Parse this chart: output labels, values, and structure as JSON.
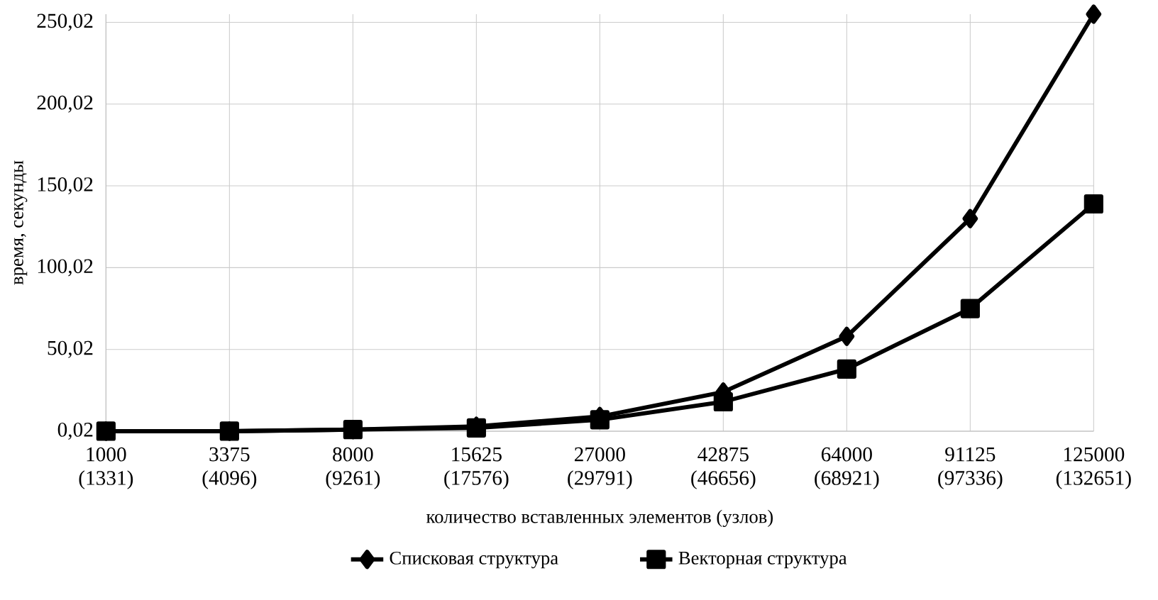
{
  "chart_data": {
    "type": "line",
    "xlabel": "количество вставленных элементов (узлов)",
    "ylabel": "время, секунды",
    "categories": [
      "1000\n(1331)",
      "3375\n(4096)",
      "8000\n(9261)",
      "15625\n(17576)",
      "27000\n(29791)",
      "42875\n(46656)",
      "64000\n(68921)",
      "91125\n(97336)",
      "125000\n(132651)"
    ],
    "series": [
      {
        "name": "Списковая структура",
        "color": "#000000",
        "marker": "diamond",
        "values": [
          0.02,
          0.02,
          1,
          3,
          9,
          24,
          58,
          130,
          255
        ]
      },
      {
        "name": "Векторная структура",
        "color": "#000000",
        "marker": "square",
        "values": [
          0.02,
          0.02,
          1,
          2,
          7,
          18,
          38,
          75,
          139
        ]
      }
    ],
    "ylim": [
      0.02,
      255
    ],
    "yticks": [
      {
        "value": 0.02,
        "label": "0,02"
      },
      {
        "value": 50.02,
        "label": "50,02"
      },
      {
        "value": 100.02,
        "label": "100,02"
      },
      {
        "value": 150.02,
        "label": "150,02"
      },
      {
        "value": 200.02,
        "label": "200,02"
      },
      {
        "value": 250.02,
        "label": "250,02"
      }
    ],
    "grid": true,
    "legend": "bottom",
    "line_style": "solid"
  }
}
